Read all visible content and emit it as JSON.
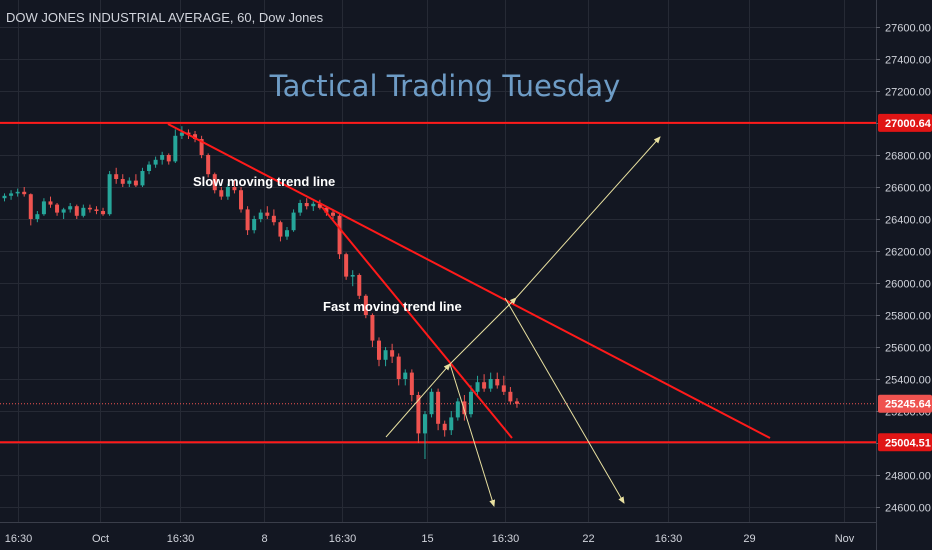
{
  "header": {
    "symbol_title": "DOW JONES INDUSTRIAL AVERAGE, 60, Dow Jones"
  },
  "overlay_title": "Tactical Trading Tuesday",
  "annotations": {
    "slow": "Slow moving trend line",
    "fast": "Fast moving trend line"
  },
  "colors": {
    "background": "#131722",
    "grid": "#262a35",
    "up": "#26a69a",
    "down": "#ef5350",
    "level": "#ff1a1a",
    "trend": "#ff1a1a",
    "projection": "#e8e0a0",
    "title": "#6e9cc6"
  },
  "chart_data": {
    "type": "candlestick",
    "y_axis": {
      "ticks": [
        27600,
        27400,
        27200,
        27000,
        26800,
        26600,
        26400,
        26200,
        26000,
        25800,
        25600,
        25400,
        25200,
        25000,
        24800,
        24600
      ],
      "tick_labels": [
        "27600.00",
        "27400.00",
        "27200.00",
        "27000.00",
        "26800.00",
        "26600.00",
        "26400.00",
        "26200.00",
        "26000.00",
        "25800.00",
        "25600.00",
        "25400.00",
        "25200.00",
        "25000.00",
        "24800.00",
        "24600.00"
      ],
      "range": [
        24500,
        27700
      ]
    },
    "x_axis": {
      "tick_labels": [
        "16:30",
        "Oct",
        "16:30",
        "8",
        "16:30",
        "15",
        "16:30",
        "22",
        "16:30",
        "29",
        "Nov"
      ],
      "range_bars": [
        0,
        345
      ]
    },
    "price_labels": [
      {
        "value": 27000.64,
        "label": "27000.64",
        "kind": "level"
      },
      {
        "value": 25245.64,
        "label": "25245.64",
        "kind": "last"
      },
      {
        "value": 25004.51,
        "label": "25004.51",
        "kind": "level"
      }
    ],
    "horizontal_levels": [
      27000.64,
      25004.51
    ],
    "last_price": 25245.64,
    "trend_lines": [
      {
        "name": "Slow moving trend line",
        "from": {
          "bar": 68,
          "price": 26990
        },
        "to": {
          "bar": 304,
          "price": 25005
        }
      },
      {
        "name": "Fast moving trend line",
        "from": {
          "bar": 124,
          "price": 26480
        },
        "to": {
          "bar": 201,
          "price": 25005
        }
      }
    ],
    "projections": [
      {
        "from": {
          "bar": 152,
          "price": 25030
        },
        "to": {
          "bar": 178,
          "price": 25490
        }
      },
      {
        "from": {
          "bar": 178,
          "price": 25490
        },
        "to": {
          "bar": 195,
          "price": 24550
        }
      },
      {
        "from": {
          "bar": 178,
          "price": 25490
        },
        "to": {
          "bar": 201,
          "price": 25870
        }
      },
      {
        "from": {
          "bar": 201,
          "price": 25870
        },
        "to": {
          "bar": 262,
          "price": 26900
        }
      },
      {
        "from": {
          "bar": 201,
          "price": 25870
        },
        "to": {
          "bar": 245,
          "price": 24580
        }
      }
    ],
    "candles": [
      {
        "o": 26530,
        "h": 26560,
        "l": 26510,
        "c": 26545
      },
      {
        "o": 26545,
        "h": 26580,
        "l": 26520,
        "c": 26560
      },
      {
        "o": 26560,
        "h": 26590,
        "l": 26540,
        "c": 26570
      },
      {
        "o": 26570,
        "h": 26600,
        "l": 26540,
        "c": 26555
      },
      {
        "o": 26555,
        "h": 26560,
        "l": 26360,
        "c": 26400
      },
      {
        "o": 26400,
        "h": 26450,
        "l": 26380,
        "c": 26430
      },
      {
        "o": 26430,
        "h": 26530,
        "l": 26420,
        "c": 26510
      },
      {
        "o": 26510,
        "h": 26540,
        "l": 26470,
        "c": 26490
      },
      {
        "o": 26490,
        "h": 26500,
        "l": 26420,
        "c": 26440
      },
      {
        "o": 26440,
        "h": 26470,
        "l": 26400,
        "c": 26460
      },
      {
        "o": 26460,
        "h": 26500,
        "l": 26440,
        "c": 26480
      },
      {
        "o": 26480,
        "h": 26490,
        "l": 26400,
        "c": 26420
      },
      {
        "o": 26420,
        "h": 26490,
        "l": 26410,
        "c": 26470
      },
      {
        "o": 26470,
        "h": 26490,
        "l": 26440,
        "c": 26460
      },
      {
        "o": 26460,
        "h": 26480,
        "l": 26430,
        "c": 26450
      },
      {
        "o": 26450,
        "h": 26470,
        "l": 26420,
        "c": 26430
      },
      {
        "o": 26430,
        "h": 26700,
        "l": 26420,
        "c": 26680
      },
      {
        "o": 26680,
        "h": 26720,
        "l": 26620,
        "c": 26650
      },
      {
        "o": 26650,
        "h": 26680,
        "l": 26600,
        "c": 26620
      },
      {
        "o": 26620,
        "h": 26660,
        "l": 26600,
        "c": 26640
      },
      {
        "o": 26640,
        "h": 26680,
        "l": 26600,
        "c": 26610
      },
      {
        "o": 26610,
        "h": 26720,
        "l": 26600,
        "c": 26700
      },
      {
        "o": 26700,
        "h": 26760,
        "l": 26680,
        "c": 26740
      },
      {
        "o": 26740,
        "h": 26790,
        "l": 26720,
        "c": 26770
      },
      {
        "o": 26770,
        "h": 26820,
        "l": 26740,
        "c": 26800
      },
      {
        "o": 26800,
        "h": 26810,
        "l": 26740,
        "c": 26760
      },
      {
        "o": 26760,
        "h": 26960,
        "l": 26750,
        "c": 26920
      },
      {
        "o": 26920,
        "h": 26980,
        "l": 26900,
        "c": 26940
      },
      {
        "o": 26940,
        "h": 26960,
        "l": 26900,
        "c": 26930
      },
      {
        "o": 26930,
        "h": 26950,
        "l": 26880,
        "c": 26900
      },
      {
        "o": 26900,
        "h": 26920,
        "l": 26780,
        "c": 26800
      },
      {
        "o": 26800,
        "h": 26810,
        "l": 26660,
        "c": 26680
      },
      {
        "o": 26680,
        "h": 26690,
        "l": 26560,
        "c": 26580
      },
      {
        "o": 26580,
        "h": 26600,
        "l": 26520,
        "c": 26540
      },
      {
        "o": 26540,
        "h": 26620,
        "l": 26520,
        "c": 26600
      },
      {
        "o": 26600,
        "h": 26640,
        "l": 26560,
        "c": 26580
      },
      {
        "o": 26580,
        "h": 26600,
        "l": 26440,
        "c": 26460
      },
      {
        "o": 26460,
        "h": 26480,
        "l": 26300,
        "c": 26330
      },
      {
        "o": 26330,
        "h": 26420,
        "l": 26310,
        "c": 26400
      },
      {
        "o": 26400,
        "h": 26460,
        "l": 26380,
        "c": 26440
      },
      {
        "o": 26440,
        "h": 26480,
        "l": 26400,
        "c": 26420
      },
      {
        "o": 26420,
        "h": 26460,
        "l": 26360,
        "c": 26380
      },
      {
        "o": 26380,
        "h": 26390,
        "l": 26260,
        "c": 26290
      },
      {
        "o": 26290,
        "h": 26350,
        "l": 26270,
        "c": 26330
      },
      {
        "o": 26330,
        "h": 26460,
        "l": 26320,
        "c": 26440
      },
      {
        "o": 26440,
        "h": 26520,
        "l": 26420,
        "c": 26500
      },
      {
        "o": 26500,
        "h": 26530,
        "l": 26460,
        "c": 26480
      },
      {
        "o": 26480,
        "h": 26510,
        "l": 26450,
        "c": 26495
      },
      {
        "o": 26495,
        "h": 26520,
        "l": 26460,
        "c": 26470
      },
      {
        "o": 26470,
        "h": 26480,
        "l": 26420,
        "c": 26440
      },
      {
        "o": 26440,
        "h": 26460,
        "l": 26400,
        "c": 26420
      },
      {
        "o": 26420,
        "h": 26430,
        "l": 26150,
        "c": 26180
      },
      {
        "o": 26180,
        "h": 26190,
        "l": 26020,
        "c": 26040
      },
      {
        "o": 26040,
        "h": 26080,
        "l": 25980,
        "c": 26050
      },
      {
        "o": 26050,
        "h": 26060,
        "l": 25900,
        "c": 25920
      },
      {
        "o": 25920,
        "h": 25930,
        "l": 25780,
        "c": 25800
      },
      {
        "o": 25800,
        "h": 25810,
        "l": 25600,
        "c": 25640
      },
      {
        "o": 25640,
        "h": 25660,
        "l": 25480,
        "c": 25520
      },
      {
        "o": 25520,
        "h": 25600,
        "l": 25480,
        "c": 25580
      },
      {
        "o": 25580,
        "h": 25620,
        "l": 25500,
        "c": 25540
      },
      {
        "o": 25540,
        "h": 25560,
        "l": 25360,
        "c": 25400
      },
      {
        "o": 25400,
        "h": 25460,
        "l": 25360,
        "c": 25440
      },
      {
        "o": 25440,
        "h": 25460,
        "l": 25260,
        "c": 25300
      },
      {
        "o": 25300,
        "h": 25320,
        "l": 25000,
        "c": 25060
      },
      {
        "o": 25060,
        "h": 25200,
        "l": 24900,
        "c": 25180
      },
      {
        "o": 25180,
        "h": 25340,
        "l": 25160,
        "c": 25320
      },
      {
        "o": 25320,
        "h": 25340,
        "l": 25080,
        "c": 25120
      },
      {
        "o": 25120,
        "h": 25140,
        "l": 25040,
        "c": 25080
      },
      {
        "o": 25080,
        "h": 25200,
        "l": 25050,
        "c": 25160
      },
      {
        "o": 25160,
        "h": 25280,
        "l": 25140,
        "c": 25260
      },
      {
        "o": 25260,
        "h": 25300,
        "l": 25140,
        "c": 25180
      },
      {
        "o": 25180,
        "h": 25360,
        "l": 25160,
        "c": 25320
      },
      {
        "o": 25320,
        "h": 25420,
        "l": 25300,
        "c": 25380
      },
      {
        "o": 25380,
        "h": 25430,
        "l": 25320,
        "c": 25340
      },
      {
        "o": 25340,
        "h": 25440,
        "l": 25320,
        "c": 25400
      },
      {
        "o": 25400,
        "h": 25440,
        "l": 25340,
        "c": 25360
      },
      {
        "o": 25360,
        "h": 25420,
        "l": 25300,
        "c": 25320
      },
      {
        "o": 25320,
        "h": 25350,
        "l": 25240,
        "c": 25260
      },
      {
        "o": 25260,
        "h": 25280,
        "l": 25220,
        "c": 25245
      }
    ]
  }
}
